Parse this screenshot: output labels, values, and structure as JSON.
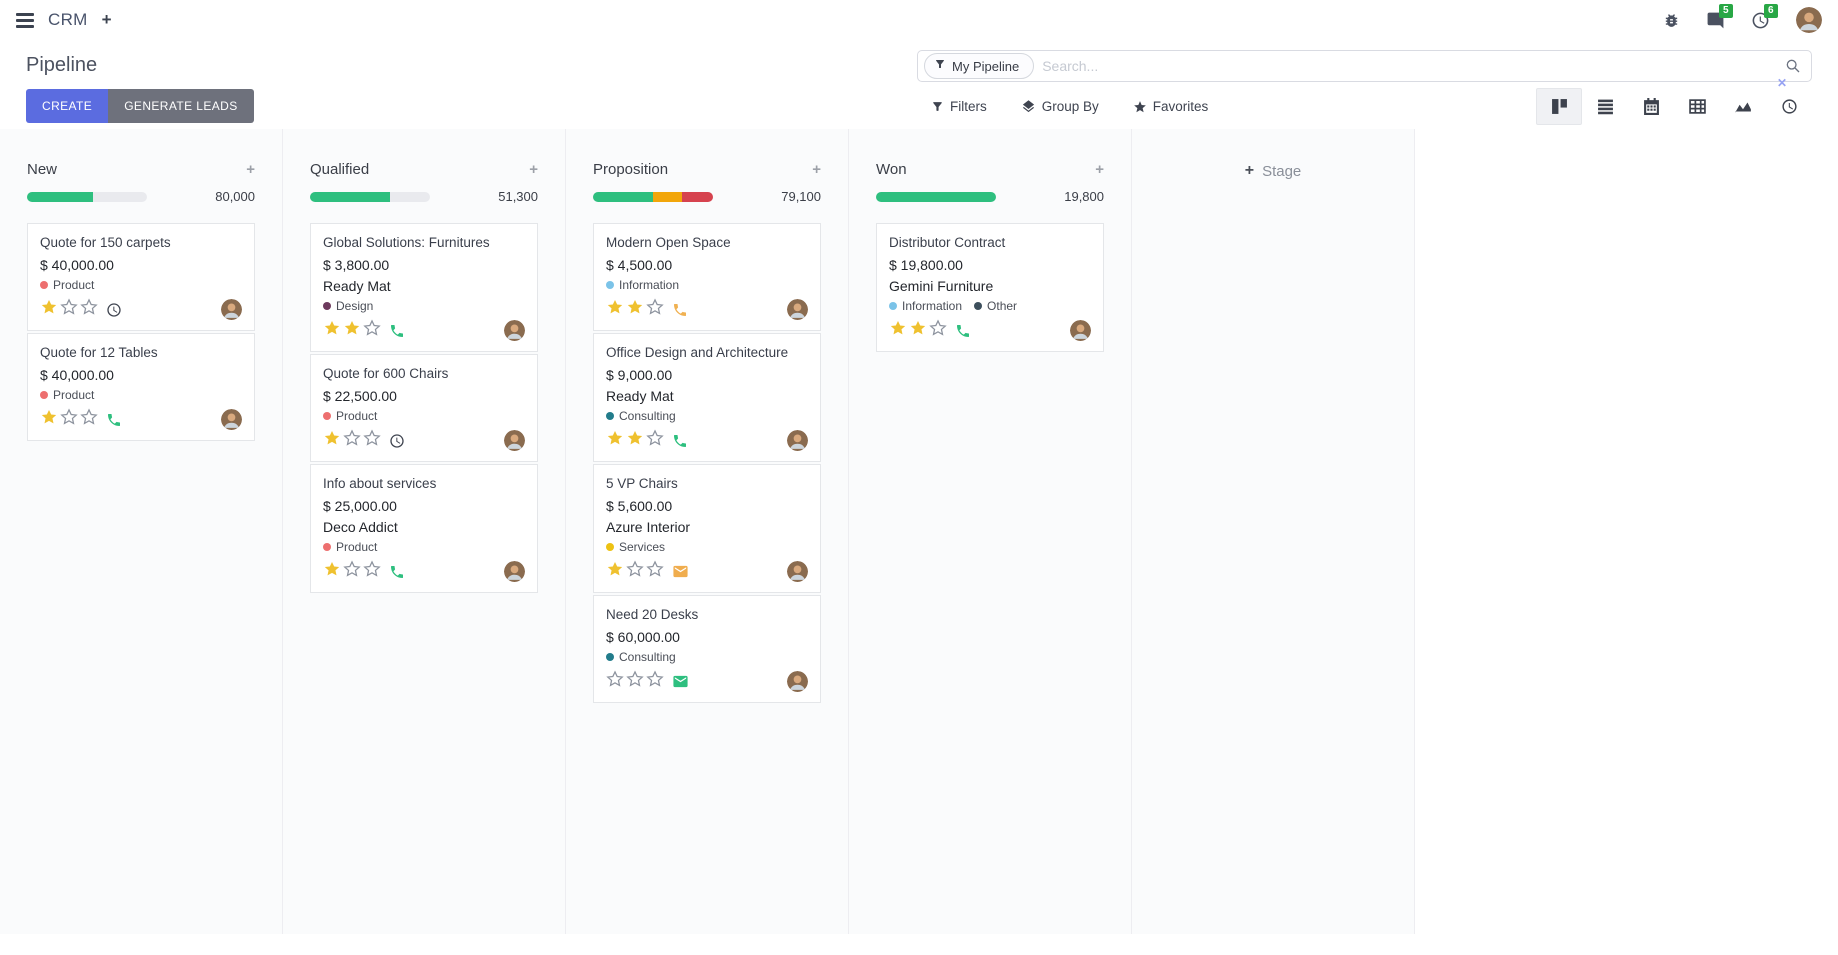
{
  "colors": {
    "accent": "#5b6ce0",
    "muted_button": "#6e717c",
    "success": "#2ebf7f",
    "warning": "#f2a60a",
    "danger": "#d6424e",
    "star_filled": "#efc12f",
    "star_empty": "#8d939e",
    "badge_green": "#28a745"
  },
  "navbar": {
    "app": "CRM",
    "message_count": "5",
    "activity_count": "6"
  },
  "control_panel": {
    "title": "Pipeline",
    "create": "CREATE",
    "generate_leads": "GENERATE LEADS",
    "facet": "My Pipeline",
    "search_placeholder": "Search...",
    "filters": "Filters",
    "group_by": "Group By",
    "favorites": "Favorites"
  },
  "kanban": {
    "add_stage": "Stage",
    "columns": [
      {
        "title": "New",
        "amount": "80,000",
        "bar": [
          {
            "color": "#2ebf7f",
            "pct": 55
          }
        ],
        "cards": [
          {
            "title": "Quote for 150 carpets",
            "amount": "$ 40,000.00",
            "tags": [
              {
                "label": "Product",
                "color": "#ed6f6f"
              }
            ],
            "stars": 1,
            "activity": {
              "icon": "clock",
              "color": "#3f4450"
            }
          },
          {
            "title": "Quote for 12 Tables",
            "amount": "$ 40,000.00",
            "tags": [
              {
                "label": "Product",
                "color": "#ed6f6f"
              }
            ],
            "stars": 1,
            "activity": {
              "icon": "phone",
              "color": "#2ebf7f"
            }
          }
        ]
      },
      {
        "title": "Qualified",
        "amount": "51,300",
        "bar": [
          {
            "color": "#2ebf7f",
            "pct": 67
          }
        ],
        "cards": [
          {
            "title": "Global Solutions: Furnitures",
            "amount": "$ 3,800.00",
            "partner": "Ready Mat",
            "tags": [
              {
                "label": "Design",
                "color": "#6d3a5d"
              }
            ],
            "stars": 2,
            "activity": {
              "icon": "phone",
              "color": "#2ebf7f"
            }
          },
          {
            "title": "Quote for 600 Chairs",
            "amount": "$ 22,500.00",
            "tags": [
              {
                "label": "Product",
                "color": "#ed6f6f"
              }
            ],
            "stars": 1,
            "activity": {
              "icon": "clock",
              "color": "#3f4450"
            }
          },
          {
            "title": "Info about services",
            "amount": "$ 25,000.00",
            "partner": "Deco Addict",
            "tags": [
              {
                "label": "Product",
                "color": "#ed6f6f"
              }
            ],
            "stars": 1,
            "activity": {
              "icon": "phone",
              "color": "#2ebf7f"
            }
          }
        ]
      },
      {
        "title": "Proposition",
        "amount": "79,100",
        "bar": [
          {
            "color": "#2ebf7f",
            "pct": 50
          },
          {
            "color": "#f2a60a",
            "pct": 24
          },
          {
            "color": "#d6424e",
            "pct": 26
          }
        ],
        "cards": [
          {
            "title": "Modern Open Space",
            "amount": "$ 4,500.00",
            "tags": [
              {
                "label": "Information",
                "color": "#7bc3e8"
              }
            ],
            "stars": 2,
            "activity": {
              "icon": "phone",
              "color": "#f0b152"
            }
          },
          {
            "title": "Office Design and Architecture",
            "amount": "$ 9,000.00",
            "partner": "Ready Mat",
            "tags": [
              {
                "label": "Consulting",
                "color": "#227c8b"
              }
            ],
            "stars": 2,
            "activity": {
              "icon": "phone",
              "color": "#2ebf7f"
            }
          },
          {
            "title": "5 VP Chairs",
            "amount": "$ 5,600.00",
            "partner": "Azure Interior",
            "tags": [
              {
                "label": "Services",
                "color": "#edc213"
              }
            ],
            "stars": 1,
            "activity": {
              "icon": "email",
              "color": "#f0ad4e"
            }
          },
          {
            "title": "Need 20 Desks",
            "amount": "$ 60,000.00",
            "tags": [
              {
                "label": "Consulting",
                "color": "#227c8b"
              }
            ],
            "stars": 0,
            "activity": {
              "icon": "email",
              "color": "#2ebf7f"
            }
          }
        ]
      },
      {
        "title": "Won",
        "amount": "19,800",
        "bar": [
          {
            "color": "#2ebf7f",
            "pct": 100
          }
        ],
        "cards": [
          {
            "title": "Distributor Contract",
            "amount": "$ 19,800.00",
            "partner": "Gemini Furniture",
            "tags": [
              {
                "label": "Information",
                "color": "#7bc3e8"
              },
              {
                "label": "Other",
                "color": "#3d4f5c"
              }
            ],
            "stars": 2,
            "activity": {
              "icon": "phone",
              "color": "#2ebf7f"
            }
          }
        ]
      }
    ]
  }
}
